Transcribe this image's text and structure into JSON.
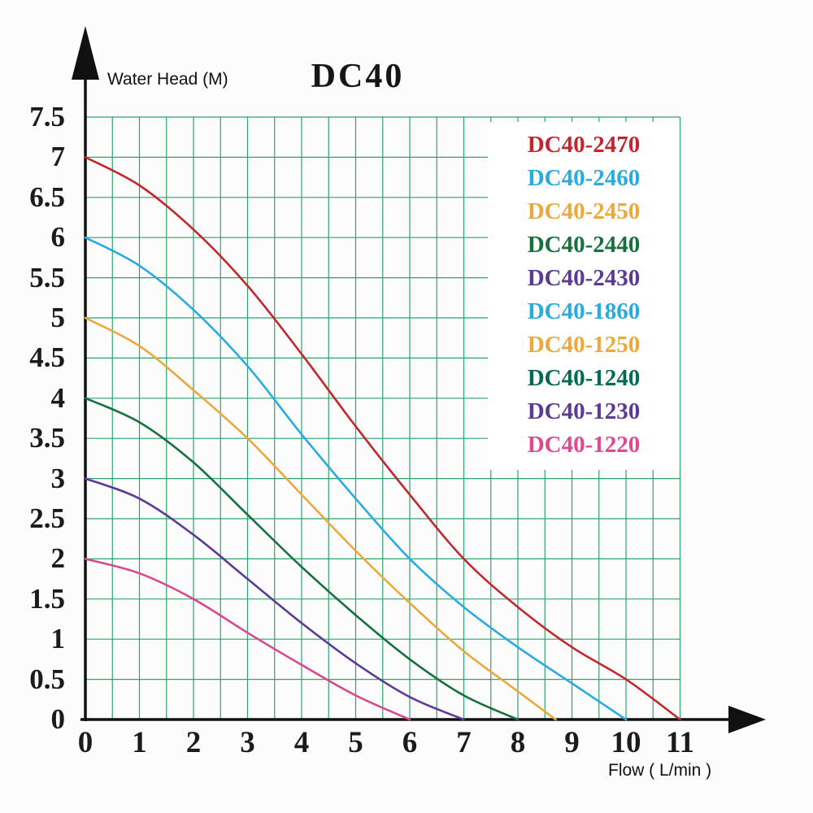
{
  "chart_data": {
    "type": "line",
    "title": "DC40",
    "xlabel": "Flow ( L/min )",
    "ylabel": "Water Head (M)",
    "xlim": [
      0,
      11
    ],
    "ylim": [
      0,
      7.5
    ],
    "x_tick_labels": [
      "0",
      "1",
      "2",
      "3",
      "4",
      "5",
      "6",
      "7",
      "8",
      "9",
      "10",
      "11"
    ],
    "y_tick_labels": [
      "7.5",
      "7",
      "6.5",
      "6",
      "5.5",
      "5",
      "4.5",
      "4",
      "3.5",
      "3",
      "2.5",
      "2",
      "1.5",
      "1",
      "0.5",
      "0"
    ],
    "grid": {
      "show": true,
      "color": "#2fa36e",
      "x_step": 0.5,
      "y_step": 0.5
    },
    "axis_color": "#111111",
    "legend_position": "top-right",
    "legend": [
      {
        "label": "DC40-2470",
        "color": "#c1272d"
      },
      {
        "label": "DC40-2460",
        "color": "#29abe2"
      },
      {
        "label": "DC40-2450",
        "color": "#eda83b"
      },
      {
        "label": "DC40-2440",
        "color": "#17703e"
      },
      {
        "label": "DC40-2430",
        "color": "#5d3a96"
      },
      {
        "label": "DC40-1860",
        "color": "#29abe2"
      },
      {
        "label": "DC40-1250",
        "color": "#eda83b"
      },
      {
        "label": "DC40-1240",
        "color": "#006b52"
      },
      {
        "label": "DC40-1230",
        "color": "#5d3a96"
      },
      {
        "label": "DC40-1220",
        "color": "#e0498f"
      }
    ],
    "series": [
      {
        "name": "DC40-2470",
        "color": "#c1272d",
        "points": [
          [
            0,
            7
          ],
          [
            1,
            6.65
          ],
          [
            2,
            6.1
          ],
          [
            3,
            5.4
          ],
          [
            4,
            4.55
          ],
          [
            5,
            3.65
          ],
          [
            6,
            2.8
          ],
          [
            7,
            2.0
          ],
          [
            8,
            1.4
          ],
          [
            9,
            0.9
          ],
          [
            10,
            0.5
          ],
          [
            11,
            0
          ]
        ]
      },
      {
        "name": "DC40-2460",
        "color": "#29abe2",
        "points": [
          [
            0,
            6
          ],
          [
            1,
            5.65
          ],
          [
            2,
            5.1
          ],
          [
            3,
            4.4
          ],
          [
            4,
            3.55
          ],
          [
            5,
            2.75
          ],
          [
            6,
            2.0
          ],
          [
            7,
            1.4
          ],
          [
            8,
            0.9
          ],
          [
            9,
            0.45
          ],
          [
            10,
            0
          ]
        ]
      },
      {
        "name": "DC40-2450",
        "color": "#eda83b",
        "points": [
          [
            0,
            5
          ],
          [
            1,
            4.65
          ],
          [
            2,
            4.1
          ],
          [
            3,
            3.5
          ],
          [
            4,
            2.8
          ],
          [
            5,
            2.1
          ],
          [
            6,
            1.45
          ],
          [
            7,
            0.85
          ],
          [
            8,
            0.35
          ],
          [
            8.7,
            0
          ]
        ]
      },
      {
        "name": "DC40-2440",
        "color": "#17703e",
        "points": [
          [
            0,
            4
          ],
          [
            1,
            3.7
          ],
          [
            2,
            3.2
          ],
          [
            3,
            2.55
          ],
          [
            4,
            1.9
          ],
          [
            5,
            1.3
          ],
          [
            6,
            0.75
          ],
          [
            7,
            0.3
          ],
          [
            8,
            0
          ]
        ]
      },
      {
        "name": "DC40-2430",
        "color": "#5d3a96",
        "points": [
          [
            0,
            3
          ],
          [
            1,
            2.75
          ],
          [
            2,
            2.3
          ],
          [
            3,
            1.75
          ],
          [
            4,
            1.2
          ],
          [
            5,
            0.7
          ],
          [
            6,
            0.28
          ],
          [
            7,
            0
          ]
        ]
      },
      {
        "name": "DC40-1220",
        "color": "#d6498c",
        "points": [
          [
            0,
            2
          ],
          [
            1,
            1.82
          ],
          [
            2,
            1.5
          ],
          [
            3,
            1.08
          ],
          [
            4,
            0.68
          ],
          [
            5,
            0.3
          ],
          [
            6,
            0
          ]
        ]
      }
    ]
  }
}
